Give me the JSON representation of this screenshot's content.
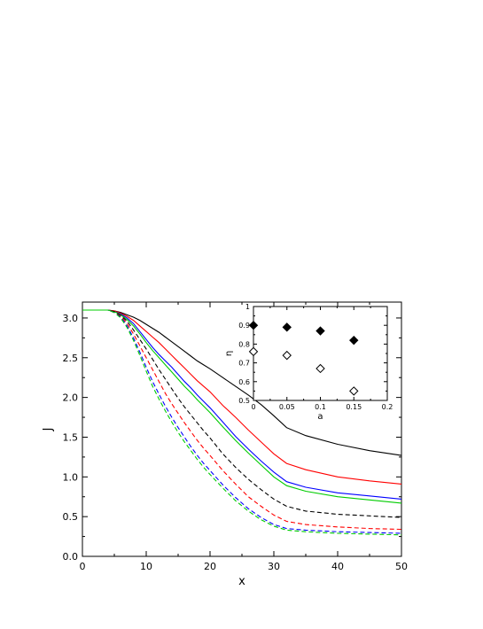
{
  "chart_data": [
    {
      "type": "line",
      "title": "",
      "xlabel": "x",
      "ylabel": "J",
      "xlim": [
        0,
        50
      ],
      "ylim": [
        0,
        3.2
      ],
      "x_ticks": [
        "0",
        "10",
        "20",
        "30",
        "40",
        "50"
      ],
      "y_ticks": [
        "0.0",
        "0.5",
        "1.0",
        "1.5",
        "2.0",
        "2.5",
        "3.0"
      ],
      "grid": false,
      "legend": "none",
      "series": [
        {
          "color": "#000000",
          "dash": "solid",
          "x": [
            0,
            4,
            5,
            6,
            7,
            8,
            9,
            10,
            11,
            12,
            13,
            14,
            15,
            16,
            17,
            18,
            19,
            20,
            22,
            24,
            26,
            28,
            30,
            32,
            35,
            40,
            45,
            50
          ],
          "y": [
            3.1,
            3.1,
            3.09,
            3.07,
            3.04,
            3.01,
            2.97,
            2.92,
            2.87,
            2.82,
            2.76,
            2.7,
            2.64,
            2.58,
            2.52,
            2.46,
            2.41,
            2.36,
            2.25,
            2.14,
            2.03,
            1.91,
            1.77,
            1.62,
            1.52,
            1.41,
            1.33,
            1.27
          ]
        },
        {
          "color": "#ff0000",
          "dash": "solid",
          "x": [
            0,
            4,
            5,
            6,
            7,
            8,
            9,
            10,
            11,
            12,
            13,
            14,
            15,
            16,
            17,
            18,
            19,
            20,
            22,
            24,
            26,
            28,
            30,
            32,
            35,
            40,
            45,
            50
          ],
          "y": [
            3.1,
            3.1,
            3.09,
            3.06,
            3.02,
            2.97,
            2.9,
            2.83,
            2.76,
            2.69,
            2.61,
            2.53,
            2.45,
            2.37,
            2.29,
            2.21,
            2.14,
            2.07,
            1.9,
            1.75,
            1.59,
            1.44,
            1.29,
            1.17,
            1.09,
            1.0,
            0.95,
            0.91
          ]
        },
        {
          "color": "#0000ff",
          "dash": "solid",
          "x": [
            0,
            4,
            5,
            6,
            7,
            8,
            9,
            10,
            11,
            12,
            13,
            14,
            15,
            16,
            17,
            18,
            19,
            20,
            22,
            24,
            26,
            28,
            30,
            32,
            35,
            40,
            45,
            50
          ],
          "y": [
            3.1,
            3.1,
            3.08,
            3.05,
            3.0,
            2.93,
            2.83,
            2.73,
            2.63,
            2.54,
            2.46,
            2.38,
            2.29,
            2.2,
            2.12,
            2.03,
            1.95,
            1.87,
            1.69,
            1.51,
            1.35,
            1.2,
            1.06,
            0.94,
            0.87,
            0.8,
            0.76,
            0.72
          ]
        },
        {
          "color": "#00cc00",
          "dash": "solid",
          "x": [
            0,
            4,
            5,
            6,
            7,
            8,
            9,
            10,
            11,
            12,
            13,
            14,
            15,
            16,
            17,
            18,
            19,
            20,
            22,
            24,
            26,
            28,
            30,
            32,
            35,
            40,
            45,
            50
          ],
          "y": [
            3.1,
            3.1,
            3.08,
            3.04,
            2.98,
            2.9,
            2.8,
            2.69,
            2.59,
            2.5,
            2.41,
            2.32,
            2.23,
            2.14,
            2.06,
            1.97,
            1.89,
            1.81,
            1.63,
            1.46,
            1.3,
            1.15,
            1.0,
            0.89,
            0.82,
            0.75,
            0.71,
            0.67
          ]
        },
        {
          "color": "#000000",
          "dash": "dashed",
          "x": [
            0,
            4,
            5,
            6,
            7,
            8,
            9,
            10,
            11,
            12,
            13,
            14,
            15,
            16,
            17,
            18,
            19,
            20,
            22,
            24,
            26,
            28,
            30,
            32,
            35,
            40,
            45,
            50
          ],
          "y": [
            3.1,
            3.1,
            3.08,
            3.03,
            2.96,
            2.85,
            2.73,
            2.61,
            2.48,
            2.35,
            2.23,
            2.11,
            1.99,
            1.88,
            1.78,
            1.68,
            1.58,
            1.49,
            1.29,
            1.12,
            0.97,
            0.84,
            0.72,
            0.63,
            0.57,
            0.53,
            0.51,
            0.49
          ]
        },
        {
          "color": "#ff0000",
          "dash": "dashed",
          "x": [
            0,
            4,
            5,
            6,
            7,
            8,
            9,
            10,
            11,
            12,
            13,
            14,
            15,
            16,
            17,
            18,
            19,
            20,
            22,
            24,
            26,
            28,
            30,
            32,
            35,
            40,
            45,
            50
          ],
          "y": [
            3.1,
            3.1,
            3.07,
            3.02,
            2.93,
            2.8,
            2.65,
            2.5,
            2.35,
            2.2,
            2.05,
            1.92,
            1.8,
            1.68,
            1.57,
            1.46,
            1.36,
            1.27,
            1.08,
            0.91,
            0.75,
            0.63,
            0.52,
            0.44,
            0.4,
            0.37,
            0.35,
            0.34
          ]
        },
        {
          "color": "#0000ff",
          "dash": "dashed",
          "x": [
            0,
            4,
            5,
            6,
            7,
            8,
            9,
            10,
            11,
            12,
            13,
            14,
            15,
            16,
            17,
            18,
            19,
            20,
            22,
            24,
            26,
            28,
            30,
            32,
            35,
            40,
            45,
            50
          ],
          "y": [
            3.1,
            3.1,
            3.07,
            3.01,
            2.9,
            2.75,
            2.57,
            2.38,
            2.2,
            2.04,
            1.89,
            1.75,
            1.62,
            1.5,
            1.38,
            1.27,
            1.17,
            1.08,
            0.9,
            0.74,
            0.6,
            0.49,
            0.4,
            0.35,
            0.33,
            0.31,
            0.3,
            0.29
          ]
        },
        {
          "color": "#00cc00",
          "dash": "dashed",
          "x": [
            0,
            4,
            5,
            6,
            7,
            8,
            9,
            10,
            11,
            12,
            13,
            14,
            15,
            16,
            17,
            18,
            19,
            20,
            22,
            24,
            26,
            28,
            30,
            32,
            35,
            40,
            45,
            50
          ],
          "y": [
            3.1,
            3.1,
            3.07,
            3.0,
            2.88,
            2.72,
            2.53,
            2.33,
            2.14,
            1.98,
            1.83,
            1.69,
            1.56,
            1.44,
            1.33,
            1.22,
            1.12,
            1.03,
            0.86,
            0.7,
            0.57,
            0.46,
            0.38,
            0.33,
            0.31,
            0.29,
            0.28,
            0.27
          ]
        }
      ]
    },
    {
      "type": "scatter",
      "title": "",
      "xlabel": "a",
      "ylabel": "η",
      "xlim": [
        0,
        0.2
      ],
      "ylim": [
        0.5,
        1.0
      ],
      "x_ticks": [
        "0",
        "0.05",
        "0.1",
        "0.15",
        "0.2"
      ],
      "y_ticks": [
        "0.5",
        "0.6",
        "0.7",
        "0.8",
        "0.9",
        "1"
      ],
      "grid": false,
      "legend": "none",
      "series": [
        {
          "marker": "diamond-filled",
          "x": [
            0,
            0.05,
            0.1,
            0.15
          ],
          "y": [
            0.9,
            0.89,
            0.87,
            0.82
          ]
        },
        {
          "marker": "diamond-open",
          "x": [
            0,
            0.05,
            0.1,
            0.15
          ],
          "y": [
            0.76,
            0.74,
            0.67,
            0.55
          ]
        }
      ]
    }
  ]
}
